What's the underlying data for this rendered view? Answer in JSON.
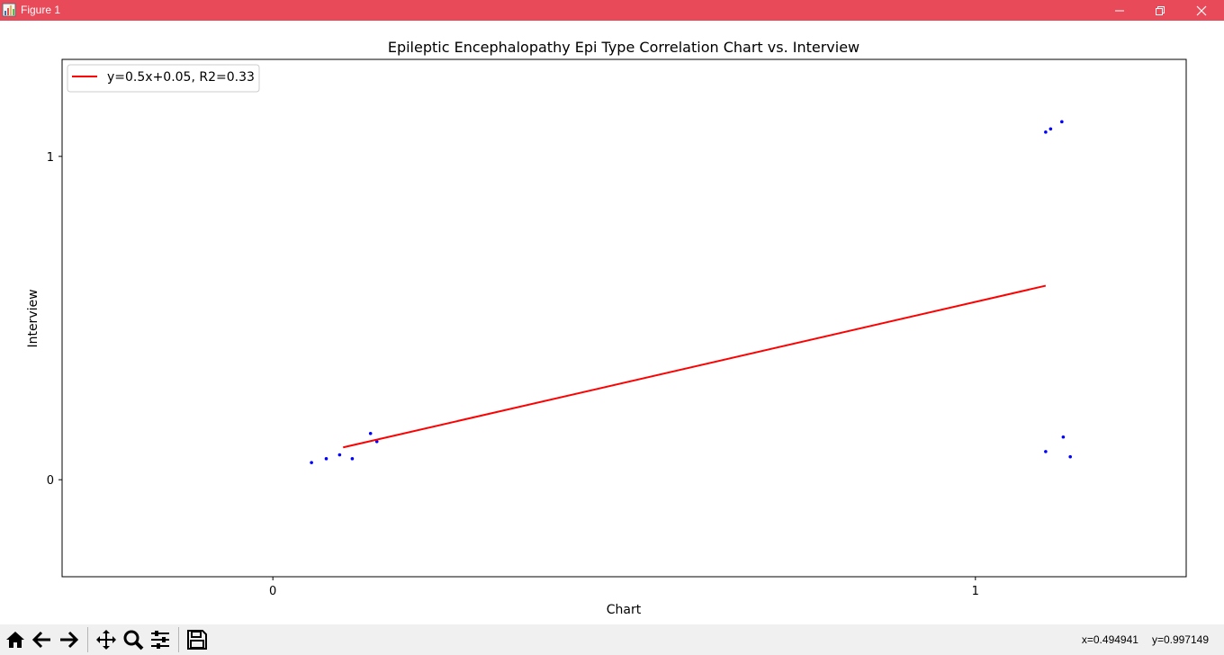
{
  "window": {
    "title": "Figure 1",
    "titlebar_color": "#e84a5a"
  },
  "toolbar": {
    "buttons": [
      "home-icon",
      "back-arrow-icon",
      "forward-arrow-icon",
      "pan-icon",
      "zoom-icon",
      "configure-icon",
      "save-icon"
    ],
    "coord_x": "x=0.494941",
    "coord_y": "y=0.997149"
  },
  "chart_data": {
    "type": "scatter",
    "title": "Epileptic Encephalopathy Epi Type Correlation Chart vs. Interview",
    "xlabel": "Chart",
    "ylabel": "Interview",
    "xlim": [
      -0.3,
      1.3
    ],
    "ylim": [
      -0.3,
      1.3
    ],
    "xticks": [
      0,
      1
    ],
    "yticks": [
      0,
      1
    ],
    "xtick_labels": [
      "0",
      "1"
    ],
    "ytick_labels": [
      "0",
      "1"
    ],
    "grid": false,
    "legend_position": "top-left",
    "series": [
      {
        "kind": "points",
        "color": "#0000ff",
        "points": [
          [
            0.055,
            0.053
          ],
          [
            0.076,
            0.065
          ],
          [
            0.095,
            0.077
          ],
          [
            0.113,
            0.065
          ],
          [
            0.139,
            0.143
          ],
          [
            0.148,
            0.118
          ],
          [
            1.1,
            1.075
          ],
          [
            1.107,
            1.085
          ],
          [
            1.123,
            1.107
          ],
          [
            1.1,
            0.087
          ],
          [
            1.125,
            0.132
          ],
          [
            1.135,
            0.071
          ]
        ]
      },
      {
        "kind": "line",
        "name": "y=0.5x+0.05, R2=0.33",
        "color": "#ff0000",
        "x": [
          0.1,
          1.1
        ],
        "y": [
          0.1,
          0.6
        ]
      }
    ]
  }
}
